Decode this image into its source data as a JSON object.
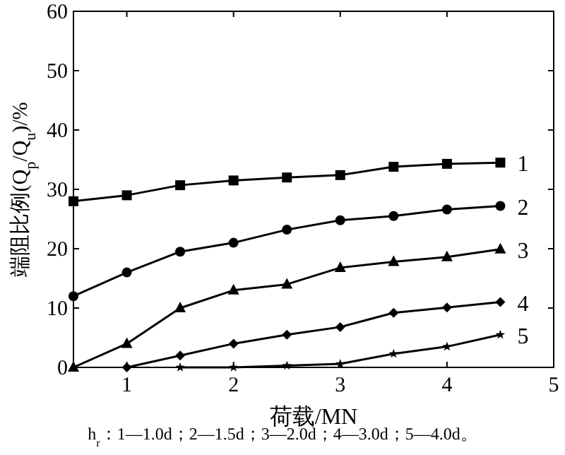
{
  "chart_data": {
    "type": "line",
    "xlabel": "荷载/MN",
    "ylabel": "端阻比例(Q$_{p}$/Q$_{u}$)/%",
    "annotations": [
      "h$_{r}$：1—1.0d；2—1.5d；3—2.0d；4—3.0d；5—4.0d。"
    ],
    "xlim": [
      0.5,
      5
    ],
    "xticks": [
      1,
      2,
      3,
      4,
      5
    ],
    "ylim": [
      0,
      60
    ],
    "yticks": [
      0,
      10,
      20,
      30,
      40,
      50,
      60
    ],
    "grid": false,
    "legend": "right",
    "line_style": "solid",
    "series": [
      {
        "name": "1",
        "color": "#000000",
        "marker": "square",
        "x": [
          0.5,
          1,
          1.5,
          2,
          2.5,
          3,
          3.5,
          4,
          4.5
        ],
        "values": [
          28,
          29,
          30.7,
          31.5,
          32,
          32.4,
          33.8,
          34.3,
          34.5
        ]
      },
      {
        "name": "2",
        "color": "#000000",
        "marker": "circle",
        "x": [
          0.5,
          1,
          1.5,
          2,
          2.5,
          3,
          3.5,
          4,
          4.5
        ],
        "values": [
          12,
          16,
          19.5,
          21,
          23.2,
          24.8,
          25.5,
          26.6,
          27.2
        ]
      },
      {
        "name": "3",
        "color": "#000000",
        "marker": "triangle",
        "x": [
          0.5,
          1,
          1.5,
          2,
          2.5,
          3,
          3.5,
          4,
          4.5
        ],
        "values": [
          0,
          4,
          10,
          13,
          14,
          16.8,
          17.8,
          18.6,
          19.9
        ]
      },
      {
        "name": "4",
        "color": "#000000",
        "marker": "diamond",
        "x": [
          1,
          1.5,
          2,
          2.5,
          3,
          3.5,
          4,
          4.5
        ],
        "values": [
          0,
          2,
          4,
          5.5,
          6.8,
          9.2,
          10.1,
          11
        ]
      },
      {
        "name": "5",
        "color": "#000000",
        "marker": "star",
        "x": [
          1.5,
          2,
          2.5,
          3,
          3.5,
          4,
          4.5
        ],
        "values": [
          0,
          0,
          0.3,
          0.6,
          2.3,
          3.5,
          5.5
        ]
      }
    ]
  }
}
